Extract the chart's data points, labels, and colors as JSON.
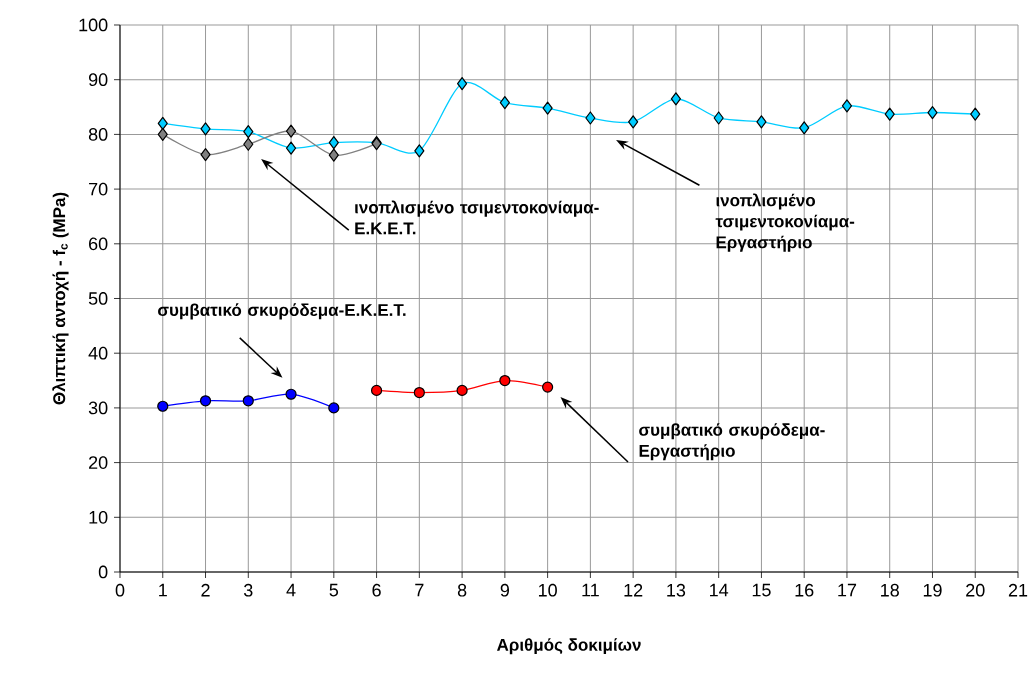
{
  "chart_data": {
    "type": "line",
    "xlabel": "Αριθμός δοκιμίων",
    "ylabel": "Θλιπτική αντοχή - f$_{c}$ (MPa)",
    "xlim": [
      0,
      21
    ],
    "xticks": [
      0,
      1,
      2,
      3,
      4,
      5,
      6,
      7,
      8,
      9,
      10,
      11,
      12,
      13,
      14,
      15,
      16,
      17,
      18,
      19,
      20,
      21
    ],
    "ylim": [
      0,
      100
    ],
    "yticks": [
      0,
      10,
      20,
      30,
      40,
      50,
      60,
      70,
      80,
      90,
      100
    ],
    "grid": true,
    "line_style": "solid",
    "series": [
      {
        "color": "#00ccff",
        "marker": "diamond",
        "x": [
          1,
          2,
          3,
          4,
          5,
          6,
          7,
          8,
          9,
          10,
          11,
          12,
          13,
          14,
          15,
          16,
          17,
          18,
          19,
          20
        ],
        "values": [
          82,
          81,
          80.5,
          77.5,
          78.5,
          78.5,
          77,
          89.3,
          85.8,
          84.8,
          83,
          82.3,
          86.5,
          83,
          82.3,
          81.2,
          85.2,
          83.7,
          84,
          83.7
        ]
      },
      {
        "color": "#808080",
        "marker": "diamond",
        "x": [
          1,
          2,
          3,
          4,
          5,
          6
        ],
        "values": [
          80,
          76.3,
          78.2,
          80.6,
          76.2,
          78.3
        ]
      },
      {
        "color": "#0000ff",
        "marker": "circle",
        "x": [
          1,
          2,
          3,
          4,
          5
        ],
        "values": [
          30.3,
          31.3,
          31.3,
          32.5,
          30
        ]
      },
      {
        "color": "#ff0000",
        "marker": "circle",
        "x": [
          6,
          7,
          8,
          9,
          10
        ],
        "values": [
          33.2,
          32.8,
          33.2,
          35,
          33.8
        ]
      }
    ],
    "annotations": [
      "ινοπλισμένο τσιμεντοκονίαμα-Ε.Κ.Ε.Τ.",
      "ινοπλισμένο τσιμεντοκονίαμα-Εργαστήριο",
      "συμβατικό σκυρόδεμα-Ε.Κ.Ε.Τ.",
      "συμβατικό σκυρόδεμα-Εργαστήριο"
    ]
  }
}
